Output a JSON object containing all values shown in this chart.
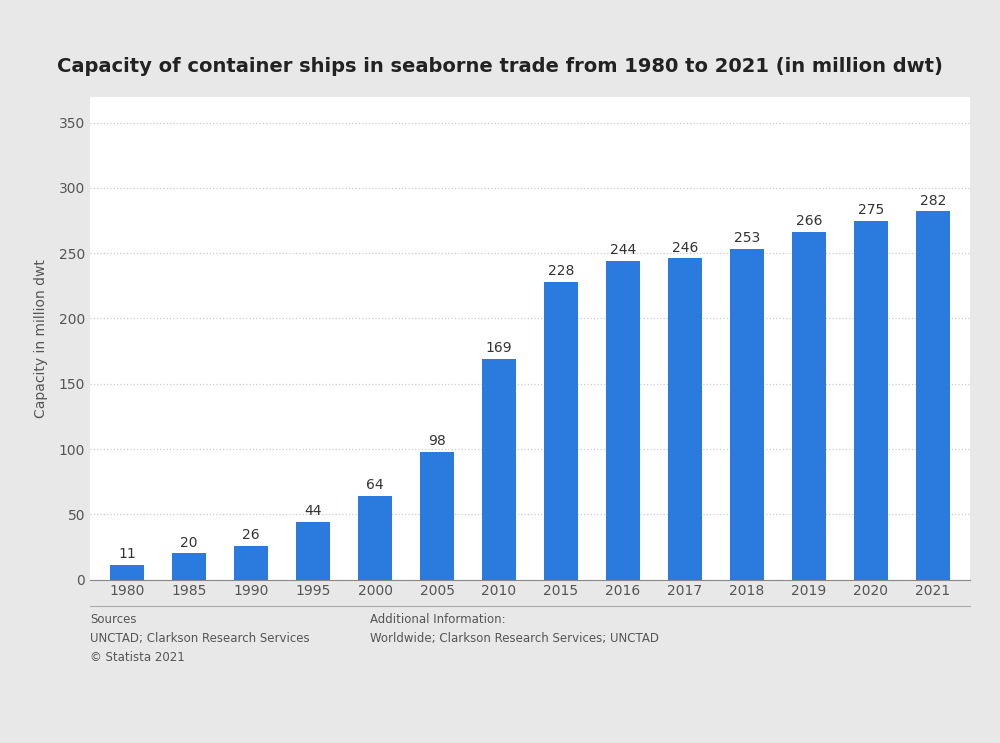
{
  "title": "Capacity of container ships in seaborne trade from 1980 to 2021 (in million dwt)",
  "categories": [
    "1980",
    "1985",
    "1990",
    "1995",
    "2000",
    "2005",
    "2010",
    "2015",
    "2016",
    "2017",
    "2018",
    "2019",
    "2020",
    "2021"
  ],
  "values": [
    11,
    20,
    26,
    44,
    64,
    98,
    169,
    228,
    244,
    246,
    253,
    266,
    275,
    282
  ],
  "bar_color": "#2b7bde",
  "ylabel": "Capacity in million dwt",
  "ylim": [
    0,
    370
  ],
  "yticks": [
    0,
    50,
    100,
    150,
    200,
    250,
    300,
    350
  ],
  "outer_bg_color": "#e8e8e8",
  "plot_bg_color": "#ffffff",
  "title_fontsize": 14,
  "label_fontsize": 10,
  "tick_fontsize": 10,
  "bar_label_fontsize": 10,
  "sources_text": "Sources\nUNCTAD; Clarkson Research Services\n© Statista 2021",
  "additional_text": "Additional Information:\nWorldwide; Clarkson Research Services; UNCTAD",
  "grid_color": "#cccccc",
  "bar_width": 0.55
}
